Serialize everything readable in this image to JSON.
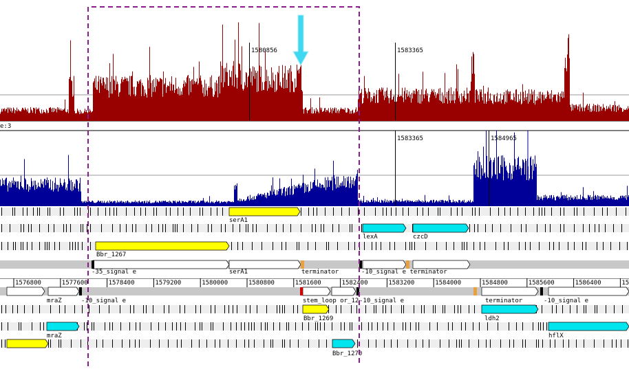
{
  "markers": [
    {
      "label": "1580856"
    },
    {
      "label": "1583365"
    },
    {
      "label": "1583365"
    },
    {
      "label": "1584965"
    }
  ],
  "track_label": "e:3",
  "axis_ticks": [
    "1576800",
    "1577600",
    "1578400",
    "1579200",
    "1580000",
    "1580800",
    "1581600",
    "1582400",
    "1583200",
    "1584000",
    "1584800",
    "1585600",
    "1586400",
    "158"
  ],
  "feature_labels": [
    "serA1",
    "lexA",
    "czcD",
    "Bbr_1267",
    "-35_signal e",
    "serA1",
    "terminator",
    "-10_signal e terminator",
    "mraZ",
    "-10_signal e",
    "stem_loop or_12",
    "-10_signal e",
    "terminator",
    "-10_signal e",
    "Bbr_1269",
    "ldh2",
    "mraZ",
    "hflX",
    "Bbr_1270"
  ]
}
